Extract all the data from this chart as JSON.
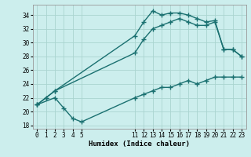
{
  "title": "",
  "xlabel": "Humidex (Indice chaleur)",
  "ylabel": "",
  "bg_color": "#cceeed",
  "line_color": "#1a7070",
  "grid_color": "#aad4d0",
  "xlim": [
    -0.5,
    23.5
  ],
  "ylim": [
    17.5,
    35.5
  ],
  "yticks": [
    18,
    20,
    22,
    24,
    26,
    28,
    30,
    32,
    34
  ],
  "xticks": [
    0,
    1,
    2,
    3,
    4,
    5,
    11,
    12,
    13,
    14,
    15,
    16,
    17,
    18,
    19,
    20,
    21,
    22,
    23
  ],
  "line1_x": [
    0,
    1,
    2,
    11,
    12,
    13,
    14,
    15,
    16,
    17,
    18,
    19,
    20,
    21,
    22,
    23
  ],
  "line1_y": [
    21.0,
    22.0,
    23.0,
    31.0,
    33.0,
    34.6,
    34.0,
    34.3,
    34.3,
    34.0,
    33.5,
    33.0,
    33.2,
    29.0,
    29.0,
    28.0
  ],
  "line2_x": [
    0,
    1,
    2,
    11,
    12,
    13,
    14,
    15,
    16,
    17,
    18,
    19,
    20,
    21,
    22,
    23
  ],
  "line2_y": [
    21.0,
    22.0,
    23.0,
    28.5,
    30.5,
    32.0,
    32.5,
    33.0,
    33.5,
    33.0,
    32.5,
    32.5,
    33.0,
    29.0,
    29.0,
    28.0
  ],
  "line3_x": [
    0,
    2,
    3,
    4,
    5,
    11,
    12,
    13,
    14,
    15,
    16,
    17,
    18,
    19,
    20,
    21,
    22,
    23
  ],
  "line3_y": [
    21.0,
    22.0,
    20.5,
    19.0,
    18.5,
    22.0,
    22.5,
    23.0,
    23.5,
    23.5,
    24.0,
    24.5,
    24.0,
    24.5,
    25.0,
    25.0,
    25.0,
    25.0
  ]
}
